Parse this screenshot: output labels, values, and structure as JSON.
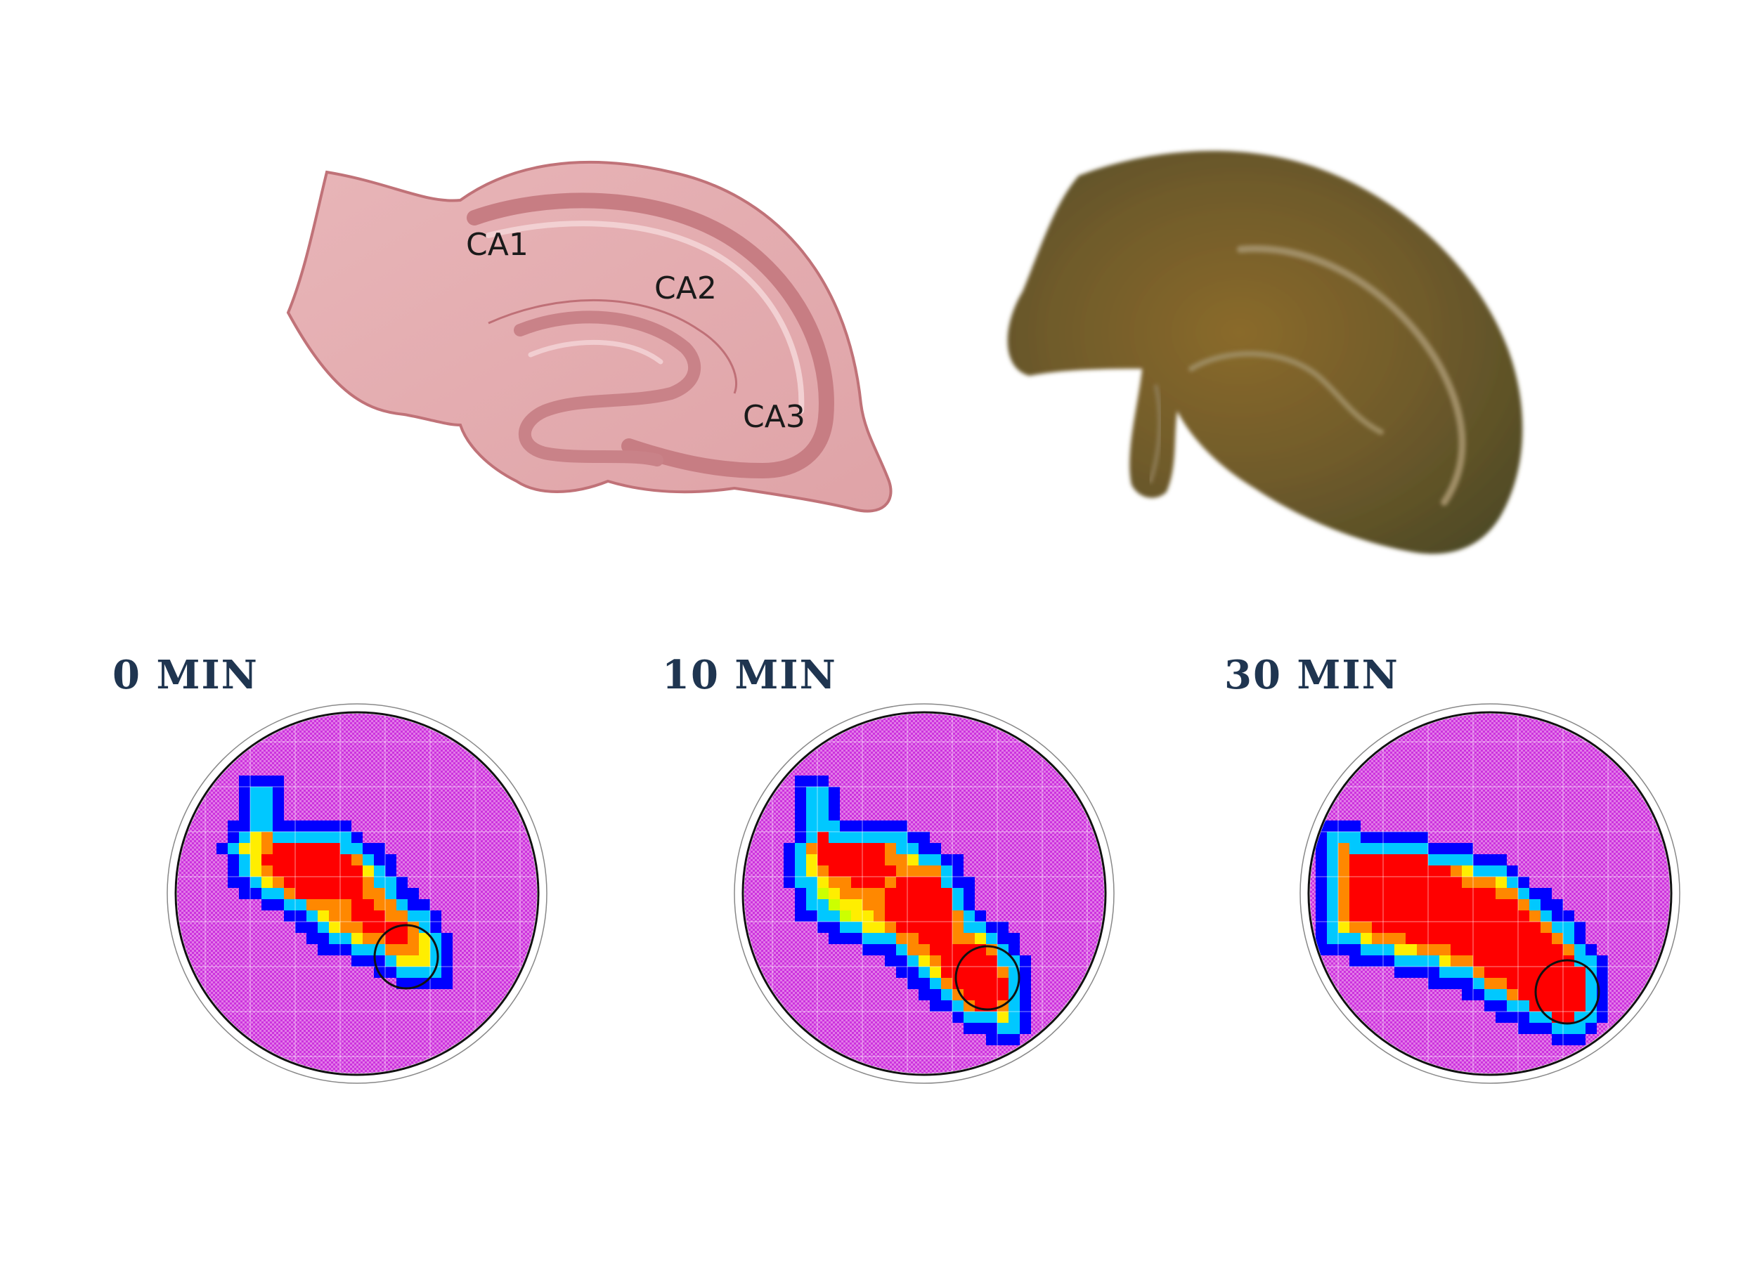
{
  "diagram": {
    "regions": [
      "CA1",
      "CA2",
      "CA3"
    ]
  },
  "heatmaps": [
    {
      "title": "0 MIN"
    },
    {
      "title": "10 MIN"
    },
    {
      "title": "30 MIN"
    }
  ],
  "colors": {
    "title": "#1f3550",
    "background_grid": "#cc33dd",
    "scale": [
      "#0000ff",
      "#00c8ff",
      "#00ff66",
      "#ccff00",
      "#ffee00",
      "#ff8800",
      "#ff0000"
    ]
  }
}
